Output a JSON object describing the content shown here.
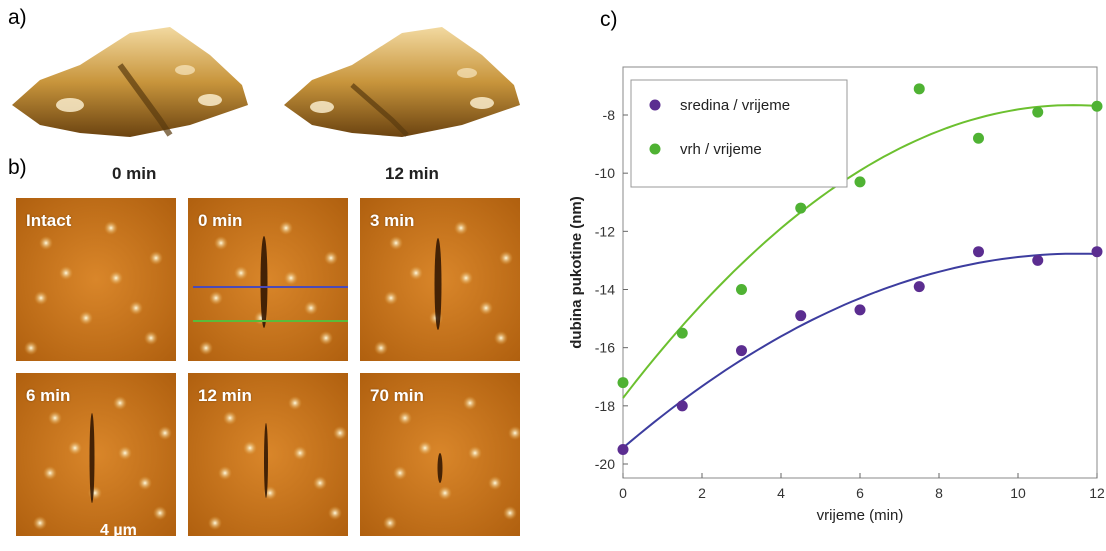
{
  "panel_a": {
    "label": "a)",
    "captions": [
      "0 min",
      "12 min"
    ]
  },
  "panel_b": {
    "label": "b)",
    "tiles": [
      "Intact",
      "0 min",
      "3 min",
      "6 min",
      "12 min",
      "70 min"
    ],
    "scale_bar": "4 µm",
    "line_colors": {
      "top": "#4a4ab8",
      "bottom": "#5bbb3a"
    }
  },
  "panel_c": {
    "label": "c)"
  },
  "chart_data": {
    "type": "scatter",
    "xlabel": "vrijeme (min)",
    "ylabel": "dubina pukotine (nm)",
    "xlim": [
      0,
      12
    ],
    "ylim": [
      -20,
      -7
    ],
    "xticks": [
      0,
      2,
      4,
      6,
      8,
      10,
      12
    ],
    "yticks": [
      -20,
      -18,
      -16,
      -14,
      -12,
      -10,
      -8
    ],
    "grid": false,
    "legend_position": "top-left",
    "series": [
      {
        "name": "sredina / vrijeme",
        "color": "#5b2d90",
        "fit_color": "#3d3d9f",
        "x": [
          0,
          1.5,
          3,
          4.5,
          6,
          7.5,
          9,
          10.5,
          12
        ],
        "y": [
          -19.5,
          -18.0,
          -16.1,
          -14.9,
          -14.7,
          -13.9,
          -12.7,
          -13.0,
          -12.7
        ]
      },
      {
        "name": "vrh / vrijeme",
        "color": "#4fb233",
        "fit_color": "#6cc02f",
        "x": [
          0,
          1.5,
          3,
          4.5,
          6,
          7.5,
          9,
          10.5,
          12
        ],
        "y": [
          -17.2,
          -15.5,
          -14.0,
          -11.2,
          -10.3,
          -7.1,
          -8.8,
          -7.9,
          -7.7
        ]
      }
    ]
  }
}
